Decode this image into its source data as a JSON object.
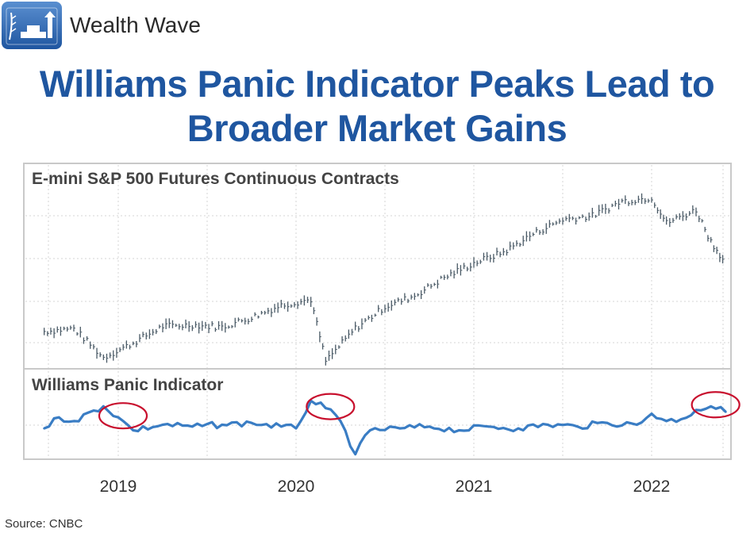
{
  "header": {
    "brand_name": "Wealth Wave",
    "logo_icon": "wealth-wave-logo-icon",
    "title_line1": "Williams Panic Indicator Peaks Lead to",
    "title_line2": "Broader Market Gains"
  },
  "colors": {
    "title": "#1f56a0",
    "indicator_line": "#3a7dc4",
    "price_bars": "#4a5a66",
    "highlight_circles": "#c8102e",
    "grid": "#cccccc"
  },
  "chart_data": [
    {
      "type": "line",
      "style": "ohlc-bars",
      "title": "E-mini S&P 500 Futures Continuous Contracts",
      "x_tick_labels": [
        "2019",
        "2020",
        "2021",
        "2022"
      ],
      "x": [
        "2018-08",
        "2018-10",
        "2018-12",
        "2019-02",
        "2019-04",
        "2019-06",
        "2019-08",
        "2019-10",
        "2019-12",
        "2020-02",
        "2020-03",
        "2020-05",
        "2020-07",
        "2020-09",
        "2020-11",
        "2021-01",
        "2021-03",
        "2021-05",
        "2021-07",
        "2021-09",
        "2021-11",
        "2022-01",
        "2022-02",
        "2022-04",
        "2022-05",
        "2022-06"
      ],
      "values": [
        2860,
        2900,
        2500,
        2700,
        2930,
        2950,
        2920,
        3050,
        3220,
        3300,
        2450,
        2900,
        3200,
        3350,
        3600,
        3800,
        3950,
        4200,
        4400,
        4450,
        4650,
        4700,
        4350,
        4530,
        4100,
        3800
      ],
      "y_range": [
        2400,
        4800
      ],
      "y_tick_labels_shown": false,
      "grid": true
    },
    {
      "type": "line",
      "title": "Williams Panic Indicator",
      "x_tick_labels": [
        "2019",
        "2020",
        "2021",
        "2022"
      ],
      "x": [
        "2018-08",
        "2018-09",
        "2018-10",
        "2018-12",
        "2019-01",
        "2019-02",
        "2019-04",
        "2019-06",
        "2019-08",
        "2019-10",
        "2019-12",
        "2020-01",
        "2020-02",
        "2020-03",
        "2020-04",
        "2020-05",
        "2020-06",
        "2020-08",
        "2020-10",
        "2020-12",
        "2021-02",
        "2021-04",
        "2021-06",
        "2021-08",
        "2021-10",
        "2021-12",
        "2022-01",
        "2022-02",
        "2022-03",
        "2022-04",
        "2022-05",
        "2022-06"
      ],
      "values": [
        0.25,
        0.55,
        0.45,
        0.85,
        0.55,
        0.2,
        0.35,
        0.3,
        0.35,
        0.4,
        0.3,
        0.25,
        1.0,
        0.8,
        0.45,
        -0.45,
        0.2,
        0.25,
        0.3,
        0.2,
        0.3,
        0.25,
        0.35,
        0.3,
        0.4,
        0.35,
        0.65,
        0.45,
        0.5,
        0.75,
        0.85,
        0.7
      ],
      "y_range": [
        -0.5,
        1.2
      ],
      "y_tick_labels_shown": false,
      "grid": true,
      "annotations": [
        {
          "type": "highlight-circle",
          "x": "2019-01",
          "label": ""
        },
        {
          "type": "highlight-circle",
          "x": "2020-03",
          "label": ""
        },
        {
          "type": "highlight-circle",
          "x": "2022-05",
          "label": ""
        }
      ]
    }
  ],
  "footer": {
    "source": "Source: CNBC"
  }
}
